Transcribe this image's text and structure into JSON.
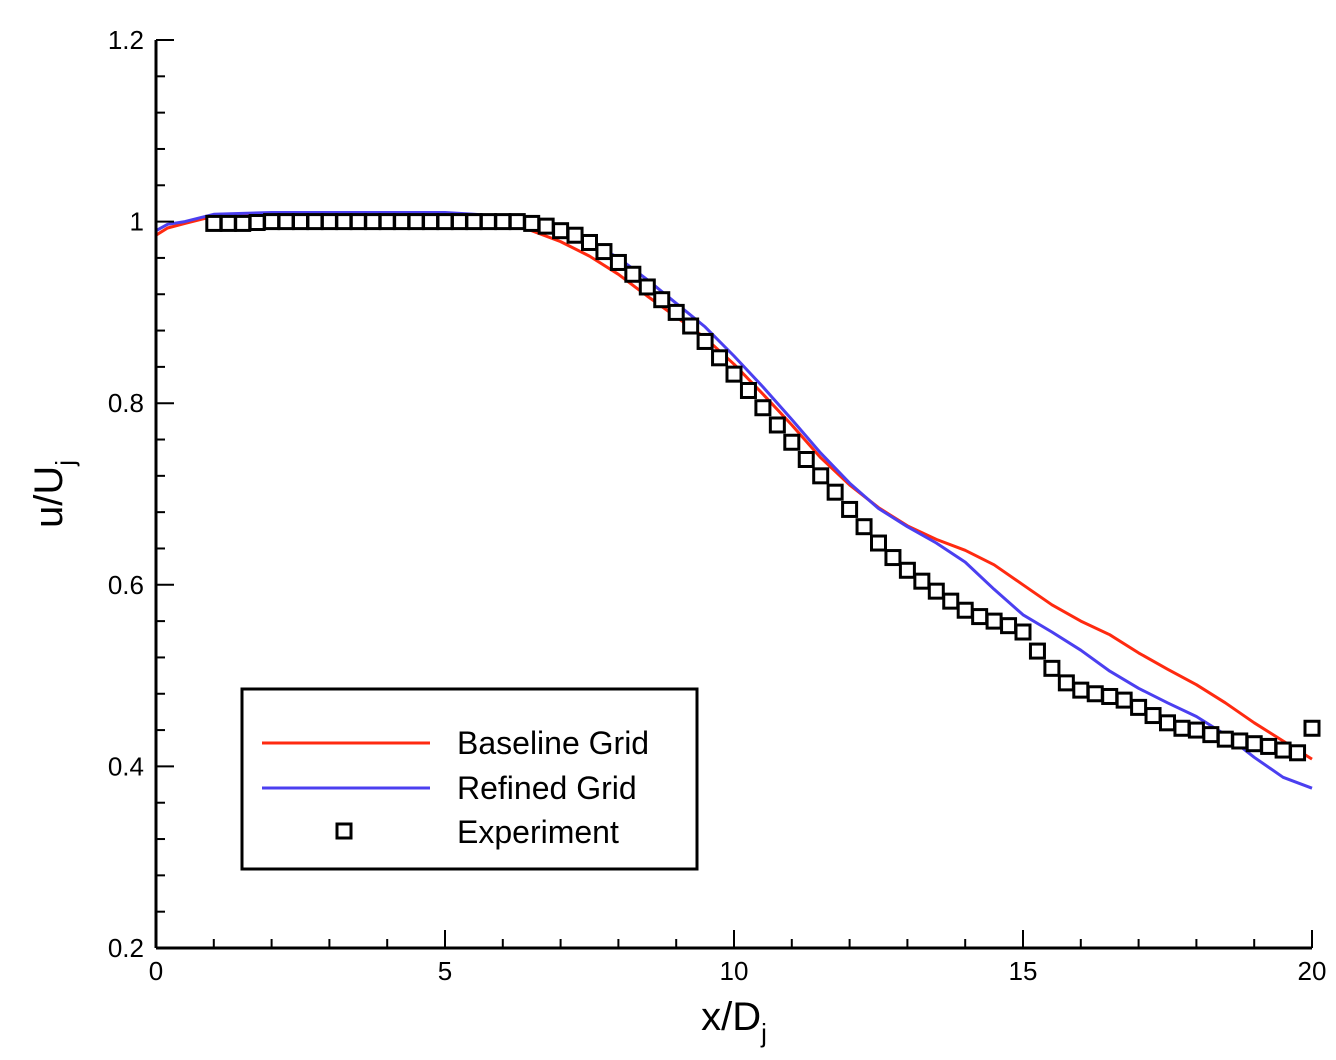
{
  "chart_data": {
    "type": "line",
    "xlabel": "x/D",
    "xlabel_sub": "j",
    "ylabel": "u/U",
    "ylabel_sub": "j",
    "xlim": [
      0,
      20
    ],
    "ylim": [
      0.2,
      1.2
    ],
    "x_ticks": [
      0,
      5,
      10,
      15,
      20
    ],
    "x_tick_labels": [
      "0",
      "5",
      "10",
      "15",
      "20"
    ],
    "y_ticks": [
      0.2,
      0.4,
      0.6,
      0.8,
      1.0,
      1.2
    ],
    "y_tick_labels": [
      "0.2",
      "0.4",
      "0.6",
      "0.8",
      "1",
      "1.2"
    ],
    "grid": false,
    "legend_position": "bottom-left",
    "series": [
      {
        "name": "Baseline Grid",
        "color": "#ff2a10",
        "style": "line",
        "x": [
          0.0,
          0.2,
          0.5,
          1.0,
          2.0,
          3.0,
          4.0,
          5.0,
          5.5,
          6.0,
          6.5,
          7.0,
          7.5,
          8.0,
          8.5,
          9.0,
          9.5,
          10.0,
          10.5,
          11.0,
          11.5,
          12.0,
          12.5,
          13.0,
          13.5,
          14.0,
          14.5,
          15.0,
          15.5,
          16.0,
          16.5,
          17.0,
          17.5,
          18.0,
          18.5,
          19.0,
          19.5,
          20.0
        ],
        "y": [
          0.985,
          0.993,
          0.998,
          1.006,
          1.008,
          1.008,
          1.008,
          1.007,
          1.005,
          1.0,
          0.99,
          0.978,
          0.962,
          0.942,
          0.918,
          0.895,
          0.872,
          0.843,
          0.81,
          0.776,
          0.74,
          0.71,
          0.685,
          0.665,
          0.65,
          0.638,
          0.622,
          0.6,
          0.578,
          0.56,
          0.545,
          0.525,
          0.507,
          0.49,
          0.47,
          0.448,
          0.428,
          0.408
        ]
      },
      {
        "name": "Refined Grid",
        "color": "#4b3ff0",
        "style": "line",
        "x": [
          0.0,
          0.2,
          0.5,
          1.0,
          2.0,
          3.0,
          4.0,
          5.0,
          5.5,
          6.0,
          6.5,
          7.0,
          7.5,
          8.0,
          8.5,
          9.0,
          9.5,
          10.0,
          10.5,
          11.0,
          11.5,
          12.0,
          12.5,
          13.0,
          13.5,
          14.0,
          14.5,
          15.0,
          15.5,
          16.0,
          16.5,
          17.0,
          17.5,
          18.0,
          18.5,
          19.0,
          19.5,
          20.0
        ],
        "y": [
          0.99,
          0.997,
          1.0,
          1.008,
          1.01,
          1.01,
          1.01,
          1.01,
          1.008,
          1.006,
          1.0,
          0.99,
          0.978,
          0.96,
          0.936,
          0.91,
          0.884,
          0.852,
          0.818,
          0.782,
          0.745,
          0.712,
          0.684,
          0.664,
          0.646,
          0.625,
          0.595,
          0.567,
          0.548,
          0.528,
          0.505,
          0.486,
          0.47,
          0.455,
          0.435,
          0.41,
          0.388,
          0.376
        ]
      },
      {
        "name": "Experiment",
        "color": "#000000",
        "style": "marker",
        "x": [
          1.0,
          1.25,
          1.5,
          1.75,
          2.0,
          2.25,
          2.5,
          2.75,
          3.0,
          3.25,
          3.5,
          3.75,
          4.0,
          4.25,
          4.5,
          4.75,
          5.0,
          5.25,
          5.5,
          5.75,
          6.0,
          6.25,
          6.5,
          6.75,
          7.0,
          7.25,
          7.5,
          7.75,
          8.0,
          8.25,
          8.5,
          8.75,
          9.0,
          9.25,
          9.5,
          9.75,
          10.0,
          10.25,
          10.5,
          10.75,
          11.0,
          11.25,
          11.5,
          11.75,
          12.0,
          12.25,
          12.5,
          12.75,
          13.0,
          13.25,
          13.5,
          13.75,
          14.0,
          14.25,
          14.5,
          14.75,
          15.0,
          15.25,
          15.5,
          15.75,
          16.0,
          16.25,
          16.5,
          16.75,
          17.0,
          17.25,
          17.5,
          17.75,
          18.0,
          18.25,
          18.5,
          18.75,
          19.0,
          19.25,
          19.5,
          19.75,
          20.0
        ],
        "y": [
          0.998,
          0.998,
          0.998,
          0.999,
          1.0,
          1.0,
          1.0,
          1.0,
          1.0,
          1.0,
          1.0,
          1.0,
          1.0,
          1.0,
          1.0,
          1.0,
          1.0,
          1.0,
          1.0,
          1.0,
          1.0,
          1.0,
          0.998,
          0.995,
          0.99,
          0.985,
          0.977,
          0.967,
          0.955,
          0.942,
          0.928,
          0.914,
          0.9,
          0.885,
          0.868,
          0.85,
          0.832,
          0.814,
          0.795,
          0.776,
          0.757,
          0.738,
          0.72,
          0.702,
          0.683,
          0.664,
          0.646,
          0.63,
          0.616,
          0.604,
          0.593,
          0.582,
          0.572,
          0.565,
          0.56,
          0.555,
          0.548,
          0.527,
          0.508,
          0.492,
          0.484,
          0.48,
          0.477,
          0.473,
          0.465,
          0.456,
          0.448,
          0.442,
          0.44,
          0.435,
          0.43,
          0.428,
          0.425,
          0.422,
          0.418,
          0.415,
          0.442
        ]
      }
    ]
  }
}
